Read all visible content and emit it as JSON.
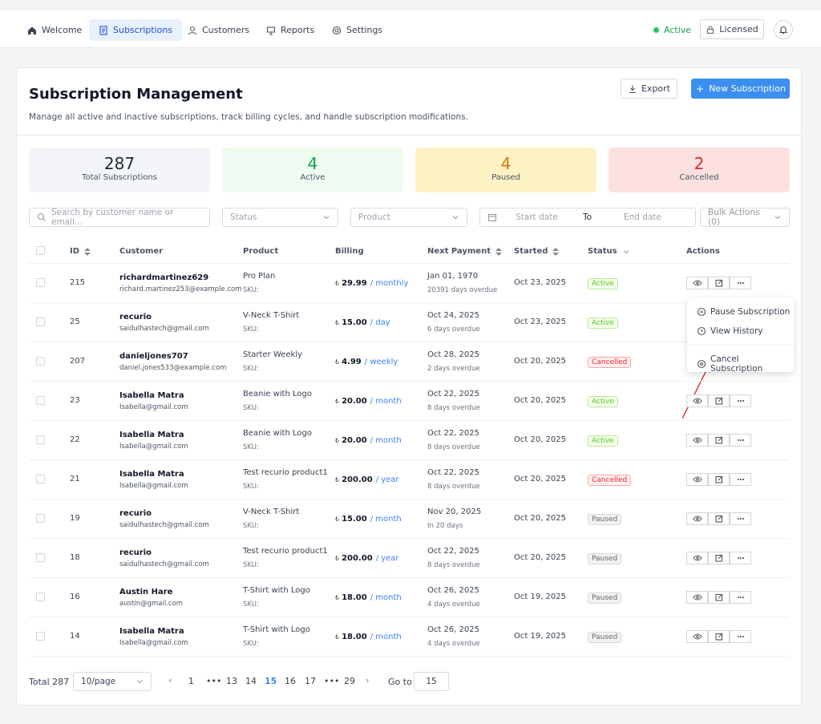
{
  "nav": {
    "items": [
      "Welcome",
      "Subscriptions",
      "Customers",
      "Reports",
      "Settings"
    ],
    "active_index": 1,
    "status": "Active",
    "license": "Licensed"
  },
  "header": {
    "title": "Subscription Management",
    "description": "Manage all active and inactive subscriptions, track billing cycles, and handle subscription modifications.",
    "export": "Export",
    "new": "New Subscription"
  },
  "stats": [
    {
      "value": 287,
      "label": "Total Subscriptions",
      "color": "#1f2937",
      "bg": "#f3f5f9"
    },
    {
      "value": 4,
      "label": "Active",
      "color": "#16a34a",
      "bg": "#eefbf1"
    },
    {
      "value": 4,
      "label": "Paused",
      "color": "#d97706",
      "bg": "#fdf2c4"
    },
    {
      "value": 2,
      "label": "Cancelled",
      "color": "#dc2626",
      "bg": "#fde1e1"
    }
  ],
  "filters": {
    "search": "Search by customer name or email...",
    "status": "Status",
    "product": "Product",
    "start": "Start date",
    "to": "To",
    "end": "End date",
    "bulk": "Bulk Actions (0)"
  },
  "table": {
    "columns": [
      "ID",
      "Customer",
      "Product",
      "Billing",
      "Next Payment",
      "Started",
      "Status",
      "Actions"
    ],
    "currency": "₺",
    "sku_label": "SKU:",
    "rows": [
      {
        "id": 215,
        "name": "richardmartinez629",
        "email": "richard.martinez253@example.com",
        "product": "Pro Plan",
        "price": "29.99",
        "cycle": "/ monthly",
        "next": "Jan 01, 1970",
        "due": "20391 days overdue",
        "started": "Oct 23, 2025",
        "status": {
          "text": "Active",
          "color": "#52c41a",
          "bg": "#f6ffed",
          "border": "#b7eb8f"
        }
      },
      {
        "id": 25,
        "name": "recurio",
        "email": "saidulhastech@gmail.com",
        "product": "V-Neck T-Shirt",
        "price": "15.00",
        "cycle": "/ day",
        "next": "Oct 24, 2025",
        "due": "6 days overdue",
        "started": "Oct 23, 2025",
        "status": {
          "text": "Active",
          "color": "#52c41a",
          "bg": "#f6ffed",
          "border": "#b7eb8f"
        }
      },
      {
        "id": 207,
        "name": "danieljones707",
        "email": "daniel.jones533@example.com",
        "product": "Starter Weekly",
        "price": "4.99",
        "cycle": "/ weekly",
        "next": "Oct 28, 2025",
        "due": "2 days overdue",
        "started": "Oct 20, 2025",
        "status": {
          "text": "Cancelled",
          "color": "#f5222d",
          "bg": "#fff1f0",
          "border": "#ffa39e"
        }
      },
      {
        "id": 23,
        "name": "Isabella Matra",
        "email": "Isabella@gmail.com",
        "product": "Beanie with Logo",
        "price": "20.00",
        "cycle": "/ month",
        "next": "Oct 22, 2025",
        "due": "8 days overdue",
        "started": "Oct 20, 2025",
        "status": {
          "text": "Active",
          "color": "#52c41a",
          "bg": "#f6ffed",
          "border": "#b7eb8f"
        }
      },
      {
        "id": 22,
        "name": "Isabella Matra",
        "email": "Isabella@gmail.com",
        "product": "Beanie with Logo",
        "price": "20.00",
        "cycle": "/ month",
        "next": "Oct 22, 2025",
        "due": "8 days overdue",
        "started": "Oct 20, 2025",
        "status": {
          "text": "Active",
          "color": "#52c41a",
          "bg": "#f6ffed",
          "border": "#b7eb8f"
        }
      },
      {
        "id": 21,
        "name": "Isabella Matra",
        "email": "Isabella@gmail.com",
        "product": "Test recurio product1",
        "price": "200.00",
        "cycle": "/ year",
        "next": "Oct 22, 2025",
        "due": "8 days overdue",
        "started": "Oct 20, 2025",
        "status": {
          "text": "Cancelled",
          "color": "#f5222d",
          "bg": "#fff1f0",
          "border": "#ffa39e"
        }
      },
      {
        "id": 19,
        "name": "recurio",
        "email": "saidulhastech@gmail.com",
        "product": "V-Neck T-Shirt",
        "price": "15.00",
        "cycle": "/ month",
        "next": "Nov 20, 2025",
        "due": "In 20 days",
        "started": "Oct 20, 2025",
        "status": {
          "text": "Paused",
          "color": "#666666",
          "bg": "#f2f2f2",
          "border": "#d9d9d9"
        }
      },
      {
        "id": 18,
        "name": "recurio",
        "email": "saidulhastech@gmail.com",
        "product": "Test recurio product1",
        "price": "200.00",
        "cycle": "/ year",
        "next": "Oct 22, 2025",
        "due": "8 days overdue",
        "started": "Oct 20, 2025",
        "status": {
          "text": "Paused",
          "color": "#666666",
          "bg": "#f2f2f2",
          "border": "#d9d9d9"
        }
      },
      {
        "id": 16,
        "name": "Austin Hare",
        "email": "austin@gmail.com",
        "product": "T-Shirt with Logo",
        "price": "18.00",
        "cycle": "/ month",
        "next": "Oct 26, 2025",
        "due": "4 days overdue",
        "started": "Oct 19, 2025",
        "status": {
          "text": "Paused",
          "color": "#666666",
          "bg": "#f2f2f2",
          "border": "#d9d9d9"
        }
      },
      {
        "id": 14,
        "name": "Isabella Matra",
        "email": "Isabella@gmail.com",
        "product": "T-Shirt with Logo",
        "price": "18.00",
        "cycle": "/ month",
        "next": "Oct 26, 2025",
        "due": "4 days overdue",
        "started": "Oct 19, 2025",
        "status": {
          "text": "Paused",
          "color": "#666666",
          "bg": "#f2f2f2",
          "border": "#d9d9d9"
        }
      }
    ]
  },
  "menu": {
    "items": [
      "Pause Subscription",
      "View History",
      "Cancel Subscription"
    ]
  },
  "pagination": {
    "total": "Total 287",
    "page_size": "10/page",
    "pages": [
      "1",
      "•••",
      "13",
      "14",
      "15",
      "16",
      "17",
      "•••",
      "29"
    ],
    "current_index": 4,
    "goto": "Go to",
    "goto_value": "15"
  }
}
